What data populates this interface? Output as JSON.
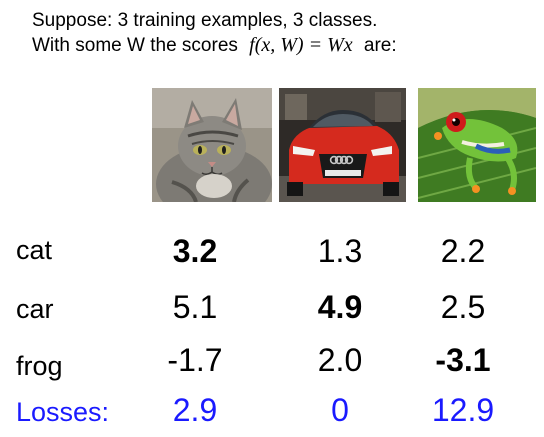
{
  "intro": {
    "line1": "Suppose: 3 training examples, 3 classes.",
    "line2_prefix": "With some W the scores",
    "formula": "f(x, W) = Wx",
    "line2_suffix": "are:"
  },
  "images": [
    {
      "name": "cat"
    },
    {
      "name": "car"
    },
    {
      "name": "frog"
    }
  ],
  "score_table": {
    "rows": [
      {
        "label": "cat",
        "values": [
          "3.2",
          "1.3",
          "2.2"
        ]
      },
      {
        "label": "car",
        "values": [
          "5.1",
          "4.9",
          "2.5"
        ]
      },
      {
        "label": "frog",
        "values": [
          "-1.7",
          "2.0",
          "-3.1"
        ]
      }
    ],
    "bold_correct_class": [
      "3.2",
      "4.9",
      "-3.1"
    ],
    "losses": {
      "label": "Losses:",
      "values": [
        "2.9",
        "0",
        "12.9"
      ]
    }
  },
  "colors": {
    "losses_text": "#1a1aff",
    "text": "#000000"
  }
}
